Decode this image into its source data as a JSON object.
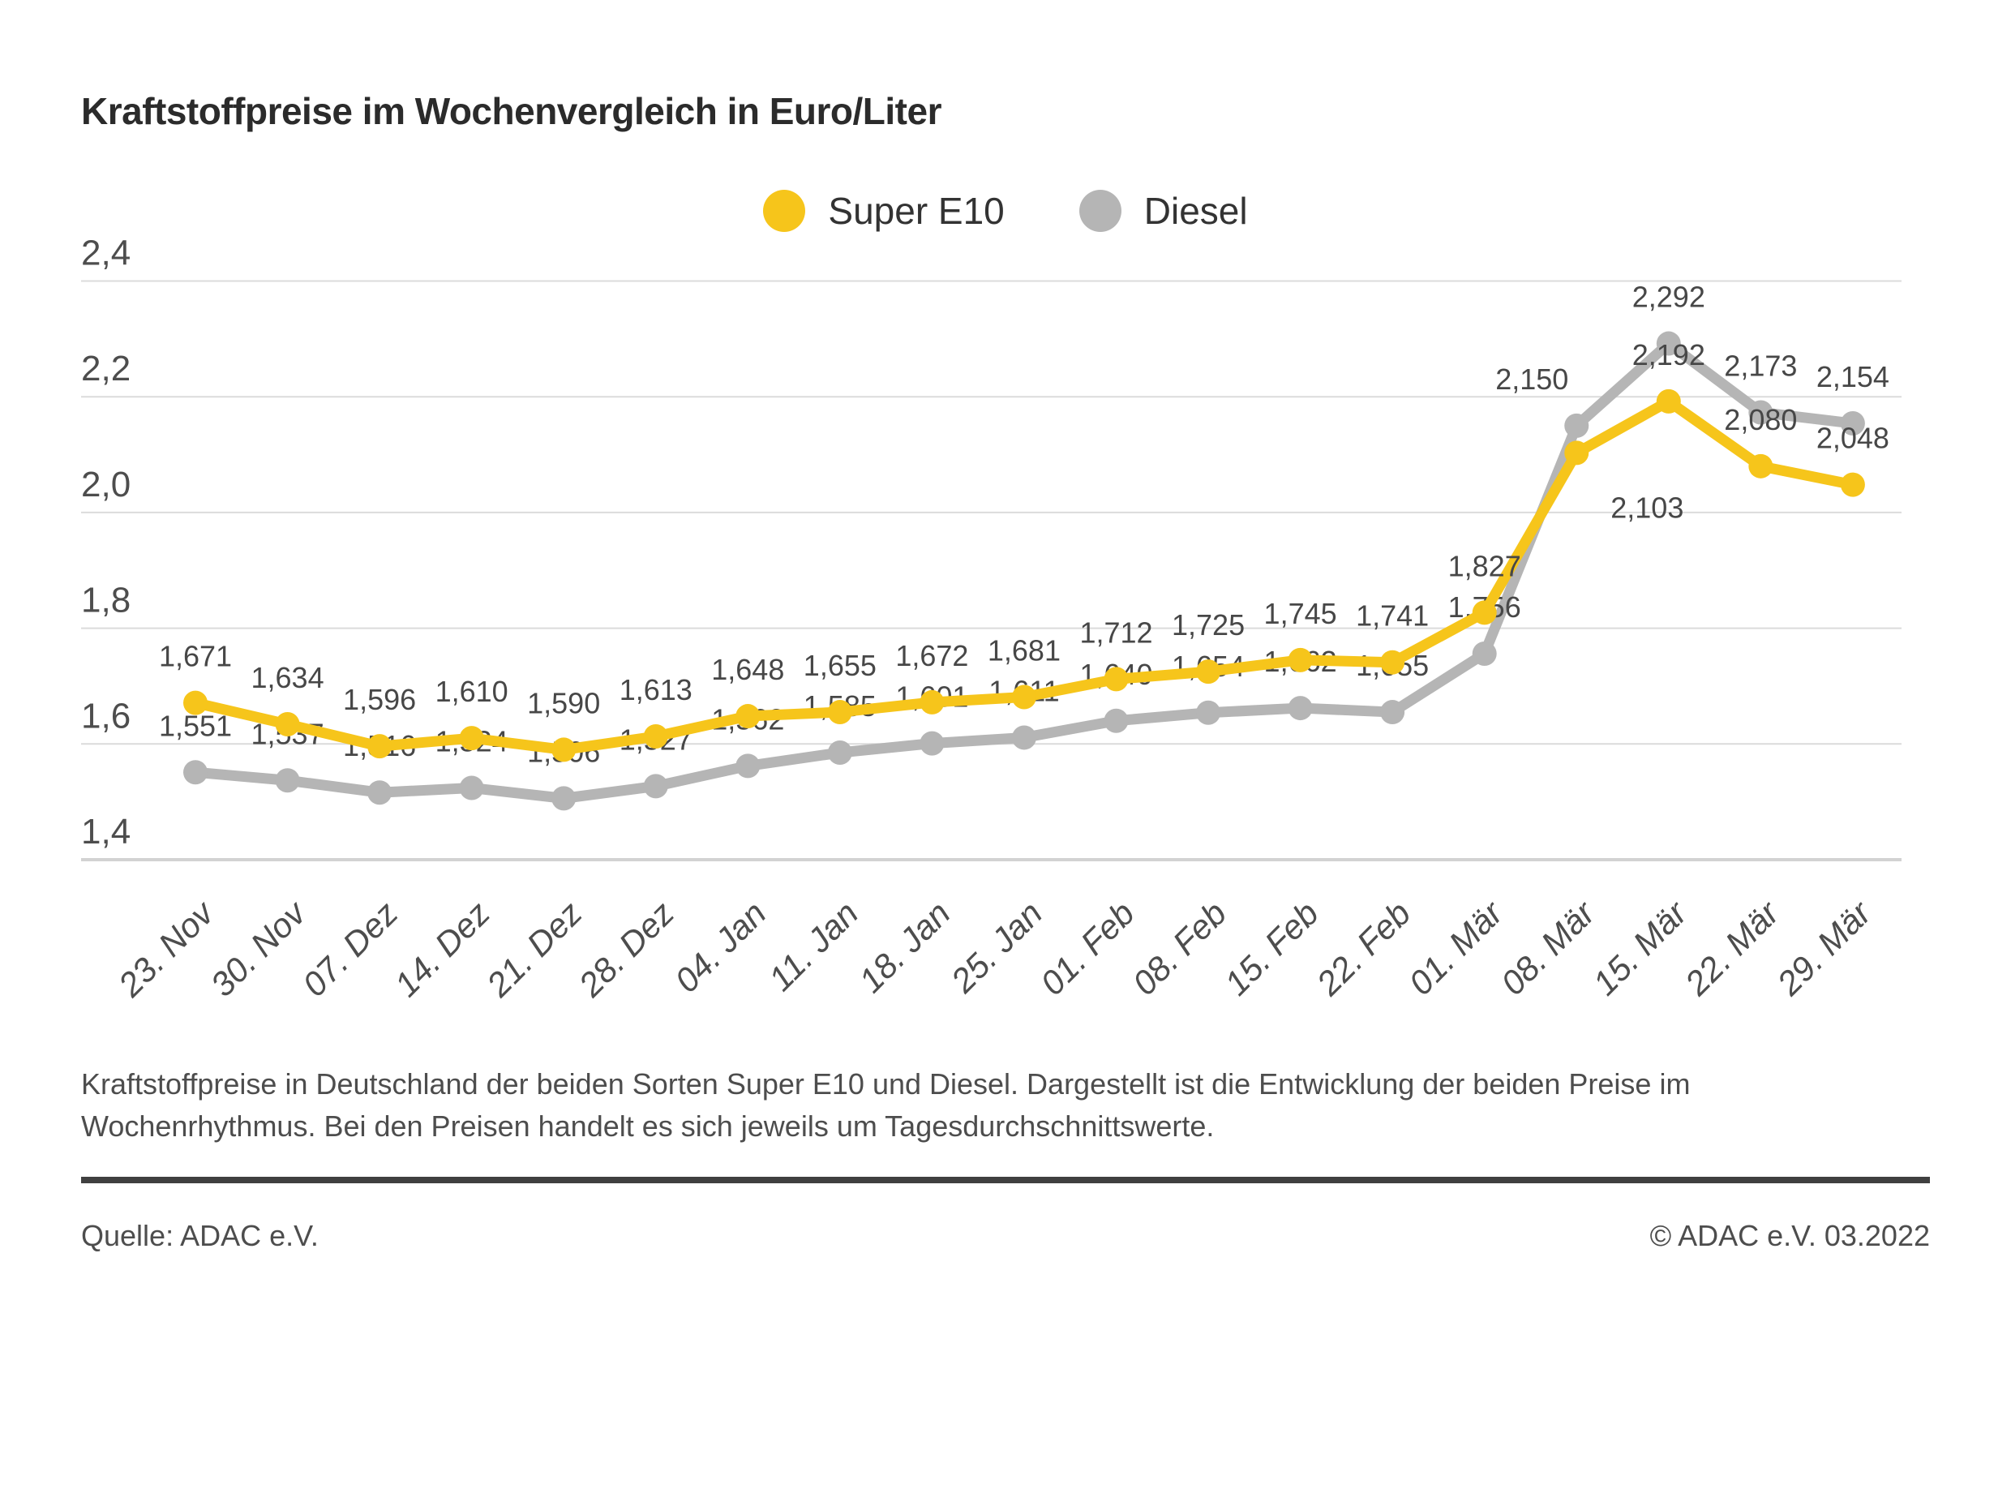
{
  "title": "Kraftstoffpreise im Wochenvergleich in Euro/Liter",
  "chart_data": {
    "type": "line",
    "title": "Kraftstoffpreise im Wochenvergleich in Euro/Liter",
    "xlabel": "",
    "ylabel": "Euro/Liter",
    "ylim": [
      1.4,
      2.4
    ],
    "yticks": [
      2.4,
      2.2,
      2.0,
      1.8,
      1.6,
      1.4
    ],
    "grid": true,
    "legend_position": "top",
    "decimal_separator": ",",
    "x": [
      "23. Nov",
      "30. Nov",
      "07. Dez",
      "14. Dez",
      "21. Dez",
      "28. Dez",
      "04. Jan",
      "11. Jan",
      "18. Jan",
      "25. Jan",
      "01. Feb",
      "08. Feb",
      "15. Feb",
      "22. Feb",
      "01. Mär",
      "08. Mär",
      "15. Mär",
      "22. Mär",
      "29. Mär"
    ],
    "series": [
      {
        "name": "Super E10",
        "color": "#f6c51b",
        "values": [
          1.671,
          1.634,
          1.596,
          1.61,
          1.59,
          1.613,
          1.648,
          1.655,
          1.672,
          1.681,
          1.712,
          1.725,
          1.745,
          1.741,
          1.827,
          2.103,
          2.192,
          2.08,
          2.048
        ]
      },
      {
        "name": "Diesel",
        "color": "#b5b5b5",
        "values": [
          1.551,
          1.537,
          1.516,
          1.524,
          1.506,
          1.527,
          1.562,
          1.585,
          1.601,
          1.611,
          1.64,
          1.654,
          1.662,
          1.655,
          1.756,
          2.15,
          2.292,
          2.173,
          2.154
        ]
      }
    ]
  },
  "description": "Kraftstoffpreise in Deutschland der beiden Sorten Super E10 und Diesel. Dargestellt ist die Entwicklung der beiden Preise im Wochenrhythmus. Bei den Preisen handelt es sich jeweils um Tagesdurchschnittswerte.",
  "source": {
    "left": "Quelle: ADAC e.V.",
    "right": "© ADAC e.V. 03.2022"
  }
}
